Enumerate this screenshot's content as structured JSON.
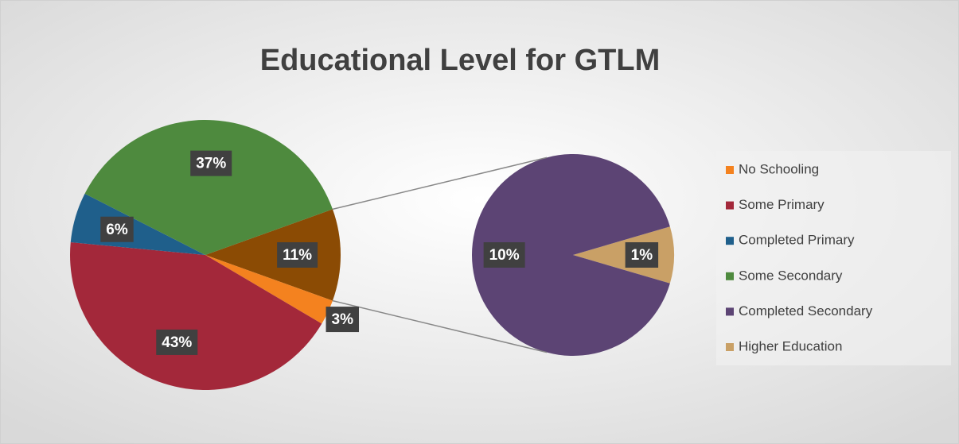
{
  "chart_data": {
    "type": "pie-of-pie",
    "title": "Educational Level for GTLM",
    "categories": [
      "No Schooling",
      "Some Primary",
      "Completed Primary",
      "Some Secondary",
      "Completed Secondary",
      "Higher Education"
    ],
    "values": [
      3,
      43,
      6,
      37,
      10,
      1
    ],
    "value_labels": [
      "3%",
      "43%",
      "6%",
      "37%",
      "10%",
      "1%"
    ],
    "colors": [
      "#f4821f",
      "#a3283a",
      "#1f5f8b",
      "#4e8a3e",
      "#5c4474",
      "#c9a066"
    ],
    "split": 2,
    "other_value": 11,
    "other_label": "11%",
    "other_color": "#8b4b04",
    "legend": "right"
  }
}
